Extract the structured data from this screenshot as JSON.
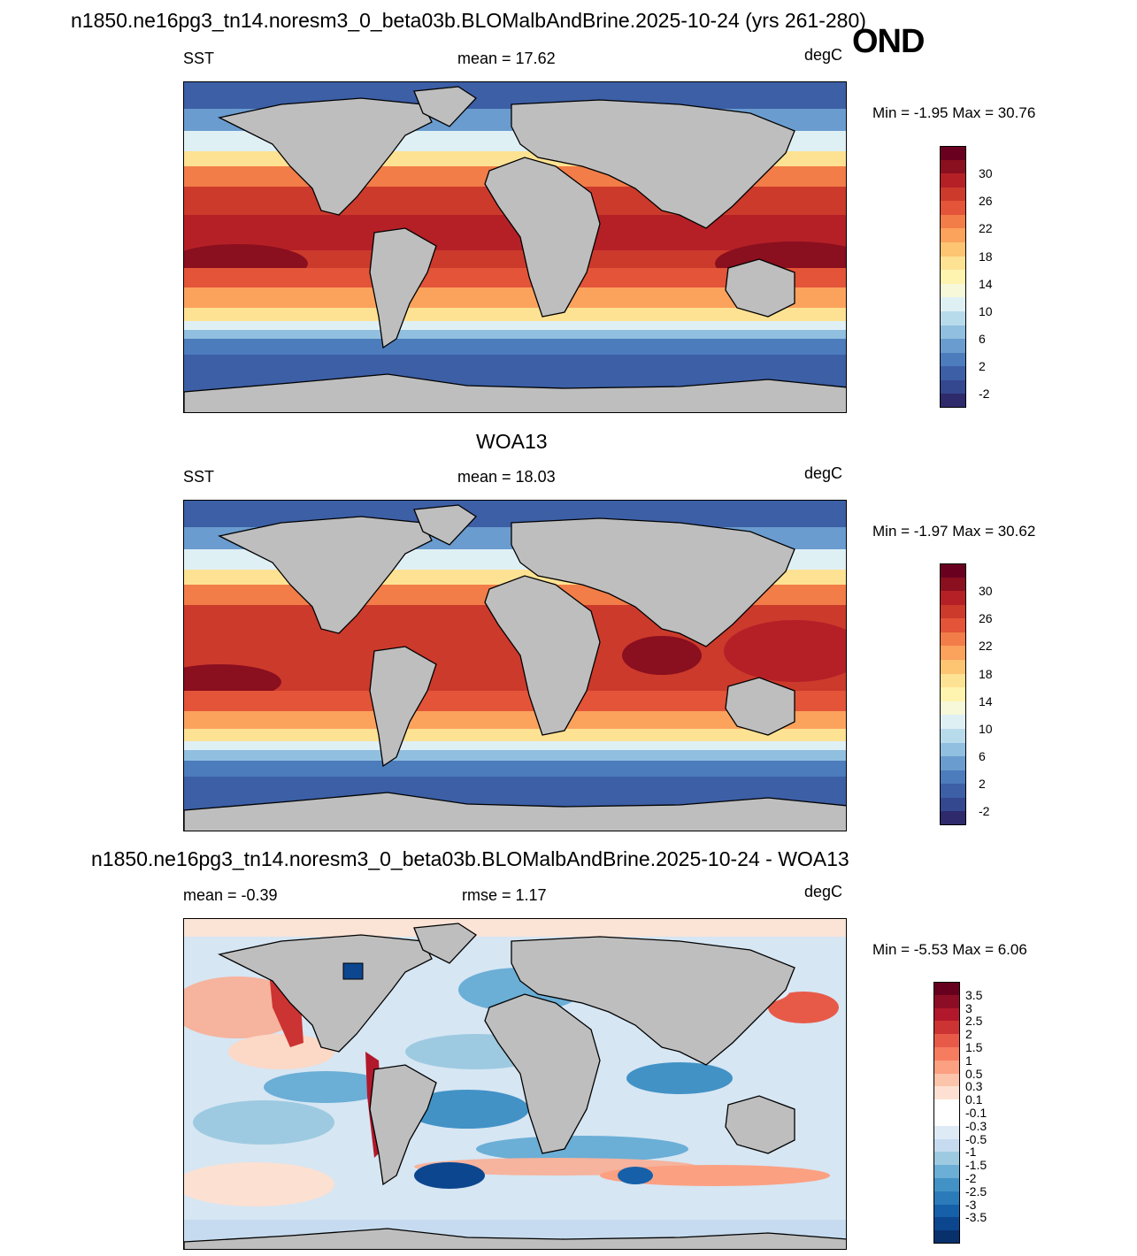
{
  "header": {
    "title": "n1850.ne16pg3_tn14.noresm3_0_beta03b.BLOMalbAndBrine.2025-10-24 (yrs 261-280)",
    "season": "OND"
  },
  "panels": [
    {
      "id": "model",
      "title": "",
      "left_label": "SST",
      "center_label": "mean =  17.62",
      "units": "degC",
      "minmax": "Min =  -1.95 Max =  30.76",
      "colorbar": {
        "colors": [
          "#2e2a6b",
          "#34488f",
          "#3c5fa6",
          "#4c7cbc",
          "#6a9ccf",
          "#91bfdf",
          "#b8dbec",
          "#dff0f5",
          "#f6f8d9",
          "#fff3b0",
          "#fde293",
          "#fdc472",
          "#fba25d",
          "#f27d48",
          "#e35438",
          "#cc3a2c",
          "#b52027",
          "#8a0f1f",
          "#6a0020"
        ],
        "labels": [
          "30",
          "26",
          "22",
          "18",
          "14",
          "10",
          "6",
          "2",
          "-2"
        ]
      }
    },
    {
      "id": "obs",
      "title": "WOA13",
      "left_label": "SST",
      "center_label": "mean =  18.03",
      "units": "degC",
      "minmax": "Min =  -1.97 Max =  30.62",
      "colorbar": {
        "colors": [
          "#2e2a6b",
          "#34488f",
          "#3c5fa6",
          "#4c7cbc",
          "#6a9ccf",
          "#91bfdf",
          "#b8dbec",
          "#dff0f5",
          "#f6f8d9",
          "#fff3b0",
          "#fde293",
          "#fdc472",
          "#fba25d",
          "#f27d48",
          "#e35438",
          "#cc3a2c",
          "#b52027",
          "#8a0f1f",
          "#6a0020"
        ],
        "labels": [
          "30",
          "26",
          "22",
          "18",
          "14",
          "10",
          "6",
          "2",
          "-2"
        ]
      }
    },
    {
      "id": "diff",
      "title": "n1850.ne16pg3_tn14.noresm3_0_beta03b.BLOMalbAndBrine.2025-10-24 - WOA13",
      "left_label": "mean =  -0.39",
      "center_label": "rmse =    1.17",
      "units": "degC",
      "minmax": "Min =  -5.53 Max =    6.06",
      "colorbar": {
        "colors": [
          "#08306b",
          "#0c468f",
          "#1660aa",
          "#2b7bba",
          "#4292c6",
          "#6baed6",
          "#9ecae1",
          "#c6dbef",
          "#deebf7",
          "#ffffff",
          "#ffffff",
          "#fde0d2",
          "#fcc3ab",
          "#fca082",
          "#f67c5f",
          "#e75a48",
          "#cc3333",
          "#b2182b",
          "#8c0d25",
          "#67001f"
        ],
        "labels": [
          "3.5",
          "3",
          "2.5",
          "2",
          "1.5",
          "1",
          "0.5",
          "0.3",
          "0.1",
          "-0.1",
          "-0.3",
          "-0.5",
          "-1",
          "-1.5",
          "-2",
          "-2.5",
          "-3",
          "-3.5"
        ]
      }
    }
  ]
}
